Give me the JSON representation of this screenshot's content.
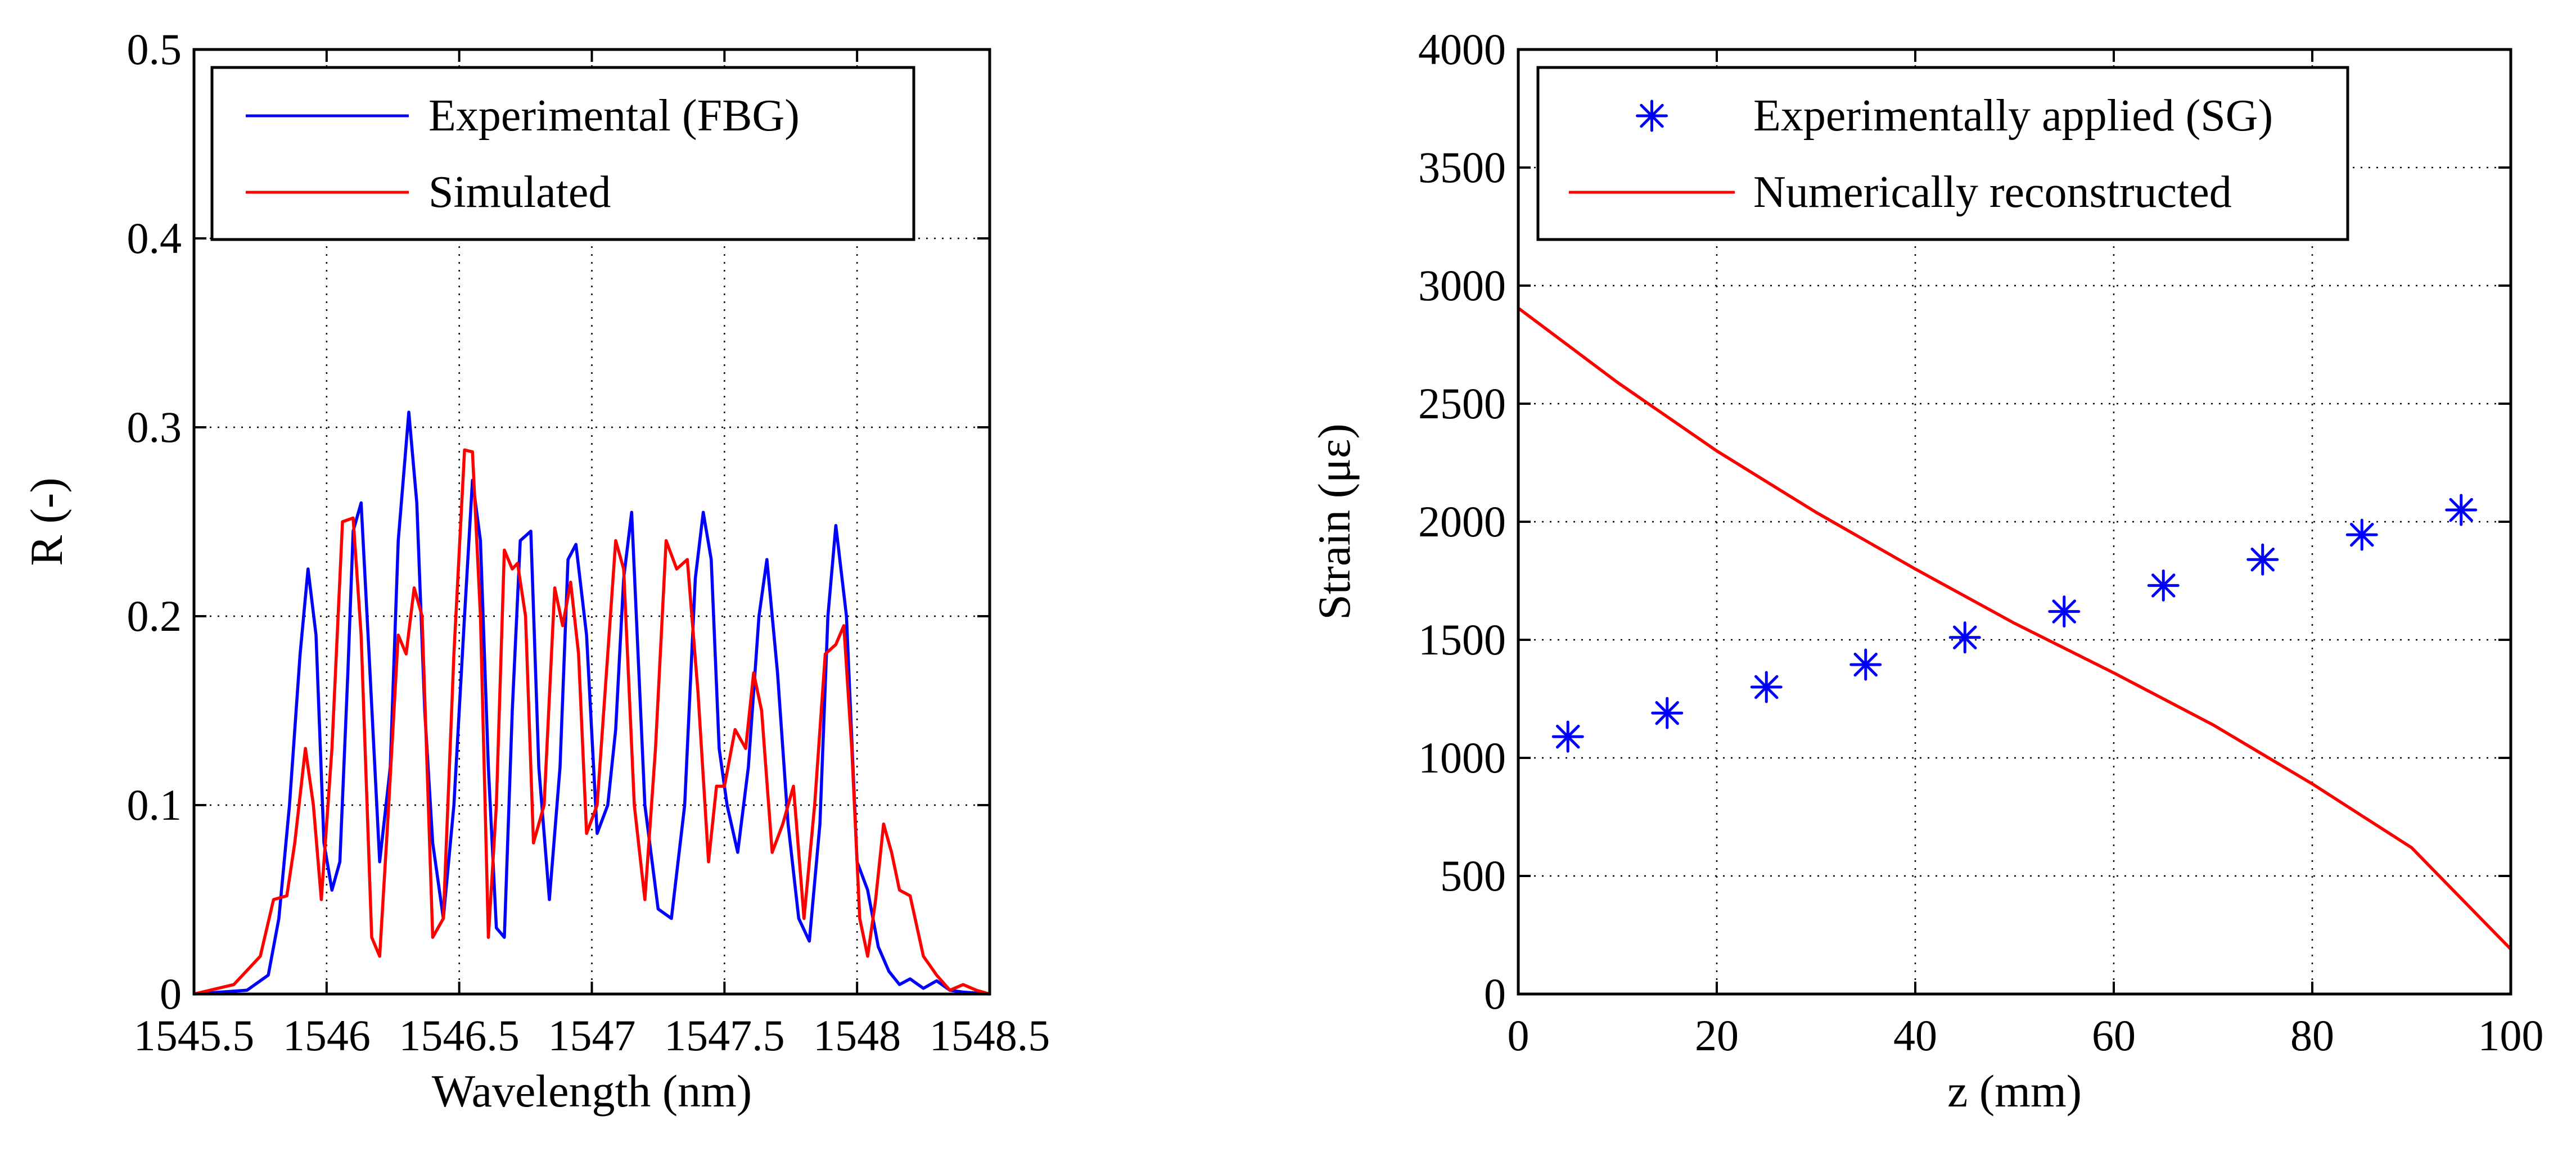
{
  "chart_data": [
    {
      "type": "line",
      "xlabel": "Wavelength (nm)",
      "ylabel": "R (-)",
      "xlim": [
        1545.5,
        1548.5
      ],
      "ylim": [
        0,
        0.5
      ],
      "grid": true,
      "legend_position": "top-left",
      "xticks": [
        "1545.5",
        "1546",
        "1546.5",
        "1547",
        "1547.5",
        "1548",
        "1548.5"
      ],
      "yticks": [
        "0",
        "0.1",
        "0.2",
        "0.3",
        "0.4",
        "0.5"
      ],
      "series": [
        {
          "name": "Experimental (FBG)",
          "color": "#0000ff",
          "x": [
            1545.5,
            1545.7,
            1545.78,
            1545.82,
            1545.86,
            1545.9,
            1545.93,
            1545.96,
            1545.99,
            1546.02,
            1546.05,
            1546.08,
            1546.1,
            1546.13,
            1546.16,
            1546.2,
            1546.24,
            1546.27,
            1546.31,
            1546.34,
            1546.37,
            1546.4,
            1546.44,
            1546.48,
            1546.52,
            1546.55,
            1546.58,
            1546.61,
            1546.64,
            1546.67,
            1546.7,
            1546.73,
            1546.77,
            1546.8,
            1546.84,
            1546.88,
            1546.91,
            1546.94,
            1546.98,
            1547.02,
            1547.06,
            1547.09,
            1547.12,
            1547.15,
            1547.2,
            1547.25,
            1547.3,
            1547.35,
            1547.39,
            1547.42,
            1547.45,
            1547.48,
            1547.51,
            1547.55,
            1547.59,
            1547.63,
            1547.66,
            1547.7,
            1547.74,
            1547.78,
            1547.82,
            1547.86,
            1547.89,
            1547.92,
            1547.96,
            1548.0,
            1548.04,
            1548.08,
            1548.12,
            1548.16,
            1548.2,
            1548.25,
            1548.3,
            1548.35,
            1548.4,
            1548.5
          ],
          "y": [
            0,
            0.002,
            0.01,
            0.04,
            0.1,
            0.18,
            0.225,
            0.19,
            0.08,
            0.055,
            0.07,
            0.17,
            0.245,
            0.26,
            0.18,
            0.07,
            0.12,
            0.24,
            0.308,
            0.26,
            0.15,
            0.08,
            0.04,
            0.1,
            0.2,
            0.272,
            0.24,
            0.12,
            0.035,
            0.03,
            0.15,
            0.24,
            0.245,
            0.12,
            0.05,
            0.12,
            0.23,
            0.238,
            0.19,
            0.085,
            0.1,
            0.14,
            0.22,
            0.255,
            0.1,
            0.045,
            0.04,
            0.1,
            0.22,
            0.255,
            0.23,
            0.13,
            0.1,
            0.075,
            0.12,
            0.2,
            0.23,
            0.17,
            0.09,
            0.04,
            0.028,
            0.09,
            0.2,
            0.248,
            0.2,
            0.07,
            0.055,
            0.025,
            0.012,
            0.005,
            0.008,
            0.003,
            0.007,
            0.002,
            0.001,
            0
          ]
        },
        {
          "name": "Simulated",
          "color": "#ff0000",
          "x": [
            1545.5,
            1545.65,
            1545.75,
            1545.8,
            1545.85,
            1545.88,
            1545.92,
            1545.95,
            1545.98,
            1546.02,
            1546.06,
            1546.1,
            1546.13,
            1546.17,
            1546.2,
            1546.23,
            1546.27,
            1546.3,
            1546.33,
            1546.36,
            1546.4,
            1546.44,
            1546.48,
            1546.52,
            1546.55,
            1546.58,
            1546.61,
            1546.64,
            1546.67,
            1546.7,
            1546.72,
            1546.75,
            1546.78,
            1546.82,
            1546.86,
            1546.89,
            1546.92,
            1546.95,
            1546.98,
            1547.02,
            1547.06,
            1547.09,
            1547.12,
            1547.16,
            1547.2,
            1547.24,
            1547.28,
            1547.32,
            1547.36,
            1547.4,
            1547.44,
            1547.47,
            1547.5,
            1547.54,
            1547.58,
            1547.61,
            1547.64,
            1547.68,
            1547.72,
            1547.76,
            1547.8,
            1547.84,
            1547.88,
            1547.92,
            1547.95,
            1547.98,
            1548.01,
            1548.04,
            1548.07,
            1548.1,
            1548.13,
            1548.16,
            1548.2,
            1548.25,
            1548.3,
            1548.35,
            1548.4,
            1548.45,
            1548.5
          ],
          "y": [
            0,
            0.005,
            0.02,
            0.05,
            0.052,
            0.08,
            0.13,
            0.1,
            0.05,
            0.13,
            0.25,
            0.252,
            0.19,
            0.03,
            0.02,
            0.09,
            0.19,
            0.18,
            0.215,
            0.2,
            0.03,
            0.04,
            0.18,
            0.288,
            0.287,
            0.2,
            0.03,
            0.1,
            0.235,
            0.225,
            0.228,
            0.2,
            0.08,
            0.1,
            0.215,
            0.195,
            0.218,
            0.18,
            0.085,
            0.1,
            0.18,
            0.24,
            0.225,
            0.1,
            0.05,
            0.13,
            0.24,
            0.225,
            0.23,
            0.16,
            0.07,
            0.11,
            0.11,
            0.14,
            0.13,
            0.17,
            0.15,
            0.075,
            0.09,
            0.11,
            0.04,
            0.1,
            0.18,
            0.185,
            0.195,
            0.13,
            0.04,
            0.02,
            0.05,
            0.09,
            0.075,
            0.055,
            0.052,
            0.02,
            0.01,
            0.002,
            0.005,
            0.002,
            0
          ]
        }
      ]
    },
    {
      "type": "scatter",
      "xlabel": "z (mm)",
      "ylabel": "Strain  (με)",
      "xlim": [
        0,
        100
      ],
      "ylim": [
        0,
        4000
      ],
      "grid": true,
      "legend_position": "top",
      "xticks": [
        "0",
        "20",
        "40",
        "60",
        "80",
        "100"
      ],
      "yticks": [
        "0",
        "500",
        "1000",
        "1500",
        "2000",
        "2500",
        "3000",
        "3500",
        "4000"
      ],
      "series": [
        {
          "name": "Experimentally applied (SG)",
          "color": "#0000ff",
          "marker": "asterisk",
          "x": [
            5,
            15,
            25,
            35,
            45,
            55,
            65,
            75,
            85,
            95
          ],
          "y": [
            1090,
            1190,
            1300,
            1395,
            1510,
            1620,
            1730,
            1840,
            1945,
            2050
          ]
        },
        {
          "name": "Numerically reconstructed",
          "color": "#ff0000",
          "marker": "line",
          "x": [
            0,
            10,
            20,
            30,
            40,
            50,
            60,
            70,
            80,
            90,
            100
          ],
          "y": [
            2905,
            2590,
            2300,
            2040,
            1800,
            1570,
            1360,
            1140,
            890,
            620,
            190
          ]
        }
      ]
    }
  ]
}
